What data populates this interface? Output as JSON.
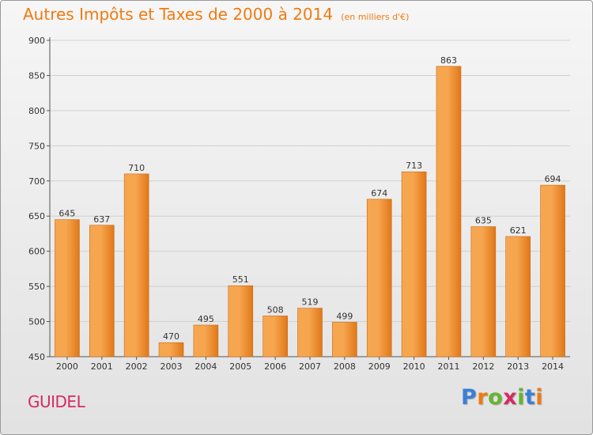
{
  "header": {
    "title": "Autres Impôts et Taxes de 2000 à 2014",
    "unit": "(en milliers d'€)"
  },
  "footer": {
    "place": "GUIDEL",
    "brand": "Proxiti"
  },
  "colors": {
    "bar_light": "#f7a650",
    "bar_dark": "#e07818",
    "title": "#f07a10",
    "place": "#d52b63",
    "brand_letters": [
      "#3a7fd5",
      "#f07a10",
      "#66b530",
      "#d52b63",
      "#66b530",
      "#3a7fd5",
      "#f07a10"
    ]
  },
  "chart_data": {
    "type": "bar",
    "title": "Autres Impôts et Taxes de 2000 à 2014",
    "subtitle": "(en milliers d'€)",
    "xlabel": "",
    "ylabel": "",
    "categories": [
      "2000",
      "2001",
      "2002",
      "2003",
      "2004",
      "2005",
      "2006",
      "2007",
      "2008",
      "2009",
      "2010",
      "2011",
      "2012",
      "2013",
      "2014"
    ],
    "values": [
      645,
      637,
      710,
      470,
      495,
      551,
      508,
      519,
      499,
      674,
      713,
      863,
      635,
      621,
      694
    ],
    "ylim": [
      450,
      900
    ],
    "yticks": [
      450,
      500,
      550,
      600,
      650,
      700,
      750,
      800,
      850,
      900
    ],
    "grid": true,
    "legend": "none"
  }
}
